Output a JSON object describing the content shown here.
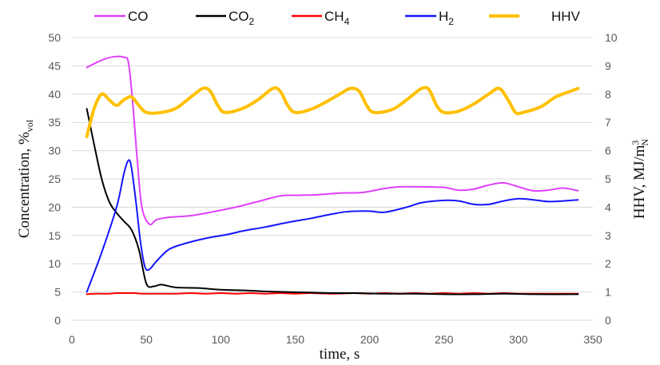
{
  "chart_data": {
    "type": "line",
    "xlabel": "time, s",
    "ylabel_left": {
      "base": "Concentration, %",
      "sub": "vol"
    },
    "ylabel_right": {
      "base": "HHV, MJ/m",
      "sup": "3",
      "sub": "N"
    },
    "xlim": [
      0,
      350
    ],
    "ylim_left": [
      0,
      50
    ],
    "ylim_right": [
      0,
      10
    ],
    "x_ticks": [
      "0",
      "50",
      "100",
      "150",
      "200",
      "250",
      "300",
      "350"
    ],
    "y_left_ticks": [
      "0",
      "5",
      "10",
      "15",
      "20",
      "25",
      "30",
      "35",
      "40",
      "45",
      "50"
    ],
    "y_right_ticks": [
      "0",
      "1",
      "2",
      "3",
      "4",
      "5",
      "6",
      "7",
      "8",
      "9",
      "10"
    ],
    "grid": "horizontal",
    "legend_position": "top",
    "series": [
      {
        "name": "CO",
        "label": {
          "base": "CO",
          "sub": ""
        },
        "color": "#e040fb",
        "axis": "left",
        "width": 2,
        "x": [
          10,
          20,
          28,
          35,
          38,
          41,
          44,
          47,
          52,
          57,
          65,
          80,
          95,
          110,
          125,
          140,
          150,
          165,
          180,
          195,
          210,
          220,
          235,
          250,
          260,
          270,
          280,
          290,
          300,
          310,
          320,
          330,
          340
        ],
        "y": [
          44.7,
          46.0,
          46.6,
          46.5,
          45.5,
          38.0,
          28.0,
          20.0,
          17.0,
          17.8,
          18.2,
          18.5,
          19.2,
          20.0,
          21.0,
          22.0,
          22.1,
          22.2,
          22.5,
          22.6,
          23.3,
          23.6,
          23.6,
          23.5,
          23.0,
          23.2,
          23.9,
          24.3,
          23.6,
          22.9,
          23.0,
          23.4,
          22.9
        ]
      },
      {
        "name": "CO2",
        "label": {
          "base": "CO",
          "sub": "2"
        },
        "color": "#000000",
        "axis": "left",
        "width": 2,
        "x": [
          10,
          15,
          20,
          25,
          30,
          35,
          40,
          45,
          50,
          55,
          60,
          70,
          85,
          100,
          115,
          130,
          145,
          160,
          175,
          190,
          210,
          230,
          250,
          270,
          290,
          310,
          340
        ],
        "y": [
          37.4,
          31.0,
          25.0,
          21.0,
          19.0,
          17.5,
          16.0,
          12.5,
          6.5,
          6.0,
          6.3,
          5.8,
          5.7,
          5.4,
          5.3,
          5.1,
          5.0,
          4.9,
          4.8,
          4.8,
          4.7,
          4.7,
          4.6,
          4.6,
          4.7,
          4.6,
          4.6
        ]
      },
      {
        "name": "CH4",
        "label": {
          "base": "CH",
          "sub": "4"
        },
        "color": "#ff0000",
        "axis": "left",
        "width": 2,
        "x": [
          10,
          15,
          20,
          25,
          30,
          35,
          38,
          42,
          47,
          52,
          60,
          70,
          80,
          90,
          100,
          110,
          120,
          130,
          140,
          150,
          160,
          175,
          190,
          200,
          210,
          220,
          230,
          240,
          250,
          260,
          270,
          280,
          290,
          300,
          320,
          340
        ],
        "y": [
          4.6,
          4.7,
          4.7,
          4.7,
          4.8,
          4.8,
          4.8,
          4.8,
          4.7,
          4.7,
          4.7,
          4.7,
          4.8,
          4.7,
          4.8,
          4.7,
          4.8,
          4.7,
          4.8,
          4.7,
          4.8,
          4.7,
          4.8,
          4.7,
          4.8,
          4.7,
          4.8,
          4.7,
          4.8,
          4.7,
          4.8,
          4.7,
          4.8,
          4.7,
          4.7,
          4.7
        ]
      },
      {
        "name": "H2",
        "label": {
          "base": "H",
          "sub": "2"
        },
        "color": "#1515ff",
        "axis": "left",
        "width": 2,
        "x": [
          10,
          20,
          30,
          35,
          38,
          40,
          43,
          46,
          49,
          52,
          57,
          65,
          75,
          90,
          105,
          115,
          130,
          145,
          160,
          175,
          185,
          200,
          210,
          225,
          235,
          250,
          260,
          270,
          280,
          290,
          300,
          310,
          320,
          330,
          340
        ],
        "y": [
          5.0,
          12.0,
          20.0,
          26.0,
          28.3,
          27.0,
          21.0,
          14.0,
          9.5,
          9.0,
          10.5,
          12.5,
          13.5,
          14.5,
          15.2,
          15.8,
          16.5,
          17.3,
          18.0,
          18.8,
          19.2,
          19.3,
          19.1,
          20.0,
          20.8,
          21.2,
          21.1,
          20.5,
          20.5,
          21.1,
          21.5,
          21.3,
          21.0,
          21.1,
          21.3
        ]
      },
      {
        "name": "HHV",
        "label": {
          "base": "HHV",
          "sub": ""
        },
        "color": "#ffc000",
        "axis": "right",
        "width": 4,
        "x": [
          10,
          15,
          20,
          25,
          30,
          35,
          40,
          45,
          50,
          60,
          70,
          80,
          88,
          93,
          98,
          103,
          115,
          125,
          135,
          140,
          145,
          150,
          160,
          170,
          180,
          187,
          193,
          198,
          203,
          215,
          225,
          235,
          240,
          245,
          250,
          260,
          270,
          280,
          287,
          293,
          298,
          303,
          315,
          325,
          335,
          340
        ],
        "y": [
          6.5,
          7.5,
          8.0,
          7.8,
          7.6,
          7.8,
          7.9,
          7.6,
          7.35,
          7.35,
          7.5,
          7.9,
          8.2,
          8.1,
          7.6,
          7.35,
          7.5,
          7.8,
          8.2,
          8.1,
          7.6,
          7.35,
          7.45,
          7.7,
          8.0,
          8.2,
          8.1,
          7.6,
          7.35,
          7.45,
          7.8,
          8.2,
          8.15,
          7.6,
          7.35,
          7.4,
          7.65,
          8.0,
          8.2,
          7.8,
          7.35,
          7.35,
          7.55,
          7.9,
          8.1,
          8.2
        ]
      }
    ]
  }
}
